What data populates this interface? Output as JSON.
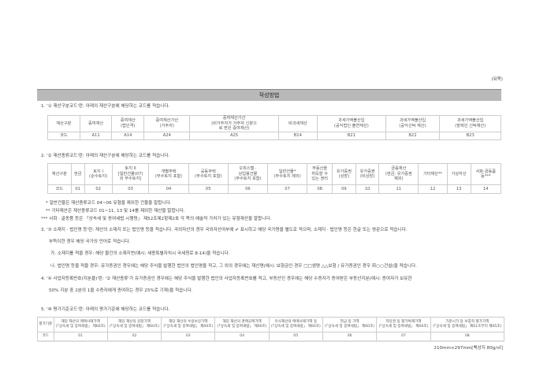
{
  "page_label": "(뒤쪽)",
  "title": "작성방법",
  "s1": {
    "text": "1. '① 재산구분코드'란: 아래의 재산구분에 해당하는 코드를 적습니다.",
    "headers": [
      "재산구분",
      "증여재산",
      "증여재산\n(법인격)",
      "증여재산가산\n(거주자)",
      "증여재산가산\n(비거주자가 거주자 신분으\n로 받은 증여재산)",
      "비과세재산",
      "과세가액불산입\n(공익법인 출연재산)",
      "과세가액불산입\n(공익신탁 재산)",
      "과세가액불산입\n(장애인 신탁재산)"
    ],
    "codes": [
      "코드",
      "A11",
      "A14",
      "A24",
      "A25",
      "B14",
      "B21",
      "B22",
      "B23"
    ]
  },
  "s2": {
    "text": "2. '② 재산종류코드'란: 아래의 재산구분에 해당하는 코드를 적습니다.",
    "headers": [
      "재산구분",
      "현금",
      "토지 I\n(순수토지)",
      "토지 II\n[일반건물(07)\n외 부수토지]",
      "개별주택\n(부수토지 포함)",
      "공동주택\n(부수토지 포함)",
      "오피스텔 ·\n상업용건물\n(부수토지 포함)",
      "일반건물*\n(부수토지 제외)",
      "부동산을\n취득할 수\n있는 권리",
      "유가증권\n(상장)",
      "유가증권\n(비상장)",
      "금융재산\n(현금, 유가증권\n제외)",
      "기타재산**",
      "가상자산",
      "서화·골동품\n등***"
    ],
    "codes": [
      "코드",
      "01",
      "02",
      "03",
      "04",
      "05",
      "06",
      "07",
      "08",
      "09",
      "10",
      "11",
      "12",
      "13",
      "14"
    ],
    "notes": [
      "* 일반건물은 재산종류코드 04~06 유형을 제외한 건물을 말합니다.",
      "** 기타재산은 재산종류코드 01~11, 13 및 14를 제외한 재산을 말합니다.",
      "*** 서화 · 골동품 등은 「상속세 및 증여세법 시행령」 제52조제2항제2호 각 목의 예술적 가치가 있는 유형재산을 말합니다."
    ]
  },
  "s3": {
    "lines": [
      "3. '③ 소재지 · 법인명 등'란: 재산의 소재지 또는 법인명 등을 적습니다. 국외자산의 경우 국외자산여부에 ✔ 표시하고 해당 국가명을 별도로 적으며, 소재지 · 법인명 등은 한글 또는 영문으로 적습니다.",
      "부득이한 경우 해당 국가의 언어로 적습니다.",
      "가. 소재지를 적을 경우: 해당 물건의 소재지번(예시: 세종특별자치시 국세청로 8-14)을 적습니다.",
      "나. 법인명 등을 적을 경우: 유가증권인 경우에는 해당 주식을 발행한 법인의 법인명을 적고, 그 외의 경우에는 재산명(예시: 보험금인 경우 □□생명 △△보험 / 유가증권인 경우 ㈜○○건설)을 적습니다."
    ]
  },
  "s4": {
    "lines": [
      "4. '④ 사업자등록번호(지분율)'란: '② 재산종류'가 유가증권인 경우에는 해당 주식을 발행한 법인의 사업자등록번호를 적고, 부동산인 경우에는 해당 수증자가 증여받은 부동산지분(예시: 증여자가 보유한",
      "50% 지분 중 2분의 1을 수증자에게 증여하는 경우 25%로 기재)을 적습니다."
    ]
  },
  "s5": {
    "text": "5. '⑩ 평가기준코드'란: 아래의 평가기준에 해당하는 코드를 적습니다.",
    "headers": [
      "평가기준",
      "해당 재산의 매매사례가액\n(「상속세 및 증여세법」 제60조)",
      "해당 재산의 감정가액\n(「상속세 및 증여세법」 제60조)",
      "해당 재산의 수용보상가액\n(「상속세 및 증여세법」 제60조)",
      "해당 재산의 경매공매가액\n(「상속세 및 증여세법」 제60조)",
      "유사재산의 매매사례가액 등\n(「상속세 및 증여세법」 제60조)",
      "현금 등 가액\n(「상속세 및 증여세법」 제60조)",
      "저당권 등 평가특례가액\n(「상속세 및 증여세법」 제66조)",
      "기준시가 등 보충적 평가가액\n(「상속세 및 증여세법」 제61조부터 제65조)"
    ],
    "codes": [
      "코드",
      "01",
      "02",
      "03",
      "04",
      "05",
      "06",
      "07",
      "08"
    ]
  },
  "footer": "210mm×297mm[백상지 80g/㎡]"
}
